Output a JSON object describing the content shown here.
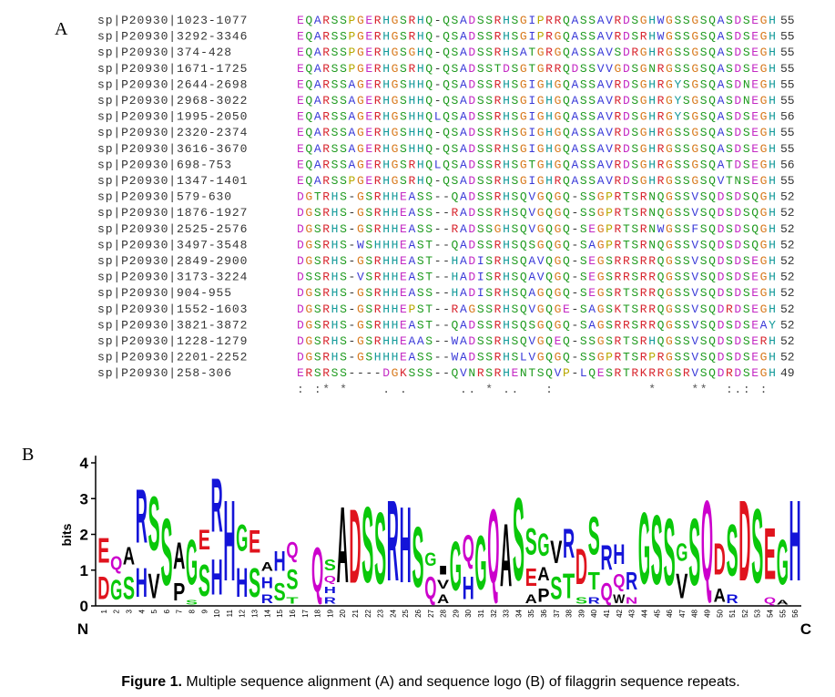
{
  "panel_a": {
    "label": "A",
    "rows": [
      {
        "name": "sp|P20930|1023-1077",
        "sequence": "EQARSSPGERHGSRHQ-QSADSSRHSGIPRRQASSAVRDSGHWGSSGSQASDSEGH",
        "length": 55
      },
      {
        "name": "sp|P20930|3292-3346",
        "sequence": "EQARSSPGERHGSRHQ-QSADSSRHSGIPRGQASSAVRDSRHWGSSGSQASDSEGH",
        "length": 55
      },
      {
        "name": "sp|P20930|374-428",
        "sequence": "EQARSSPGERHGSGHQ-QSADSSRHSATGRGQASSAVSDRGHRGSSGSQASDSEGH",
        "length": 55
      },
      {
        "name": "sp|P20930|1671-1725",
        "sequence": "EQARSSPGERHGSRHQ-QSADSSTDSGTGRRQDSSVVGDSGNRGSSGSQASDSEGH",
        "length": 55
      },
      {
        "name": "sp|P20930|2644-2698",
        "sequence": "EQARSSAGERHGSHHQ-QSADSSRHSGIGHGQASSAVRDSGHRGYSGSQASDNEGH",
        "length": 55
      },
      {
        "name": "sp|P20930|2968-3022",
        "sequence": "EQARSSAGERHGSHHQ-QSADSSRHSGIGHGQASSAVRDSGHRGYSGSQASDNEGH",
        "length": 55
      },
      {
        "name": "sp|P20930|1995-2050",
        "sequence": "EQARSSAGERHGSHHQLQSADSSRHSGIGHGQASSAVRDSGHRGYSGSQASDSEGH",
        "length": 56
      },
      {
        "name": "sp|P20930|2320-2374",
        "sequence": "EQARSSAGERHGSHHQ-QSADSSRHSGIGHGQASSAVRDSGHRGSSGSQASDSEGH",
        "length": 55
      },
      {
        "name": "sp|P20930|3616-3670",
        "sequence": "EQARSSAGERHGSHHQ-QSADSSRHSGIGHGQASSAVRDSGHRGSSGSQASDSEGH",
        "length": 55
      },
      {
        "name": "sp|P20930|698-753",
        "sequence": "EQARSSAGERHGSRHQLQSADSSRHSGTGHGQASSAVRDSGHRGSSGSQATDSEGH",
        "length": 56
      },
      {
        "name": "sp|P20930|1347-1401",
        "sequence": "EQARSSPGERHGSRHQ-QSADSSRHSGIGHRQASSAVRDSGHRGSSGSQVTNSEGH",
        "length": 55
      },
      {
        "name": "sp|P20930|579-630",
        "sequence": "DGTRHS-GSRHHEASS--QADSSRHSQVGQGQ-SSGPRTSRNQGSSVSQDSDSQGH",
        "length": 52
      },
      {
        "name": "sp|P20930|1876-1927",
        "sequence": "DGSRHS-GSRHHEASS--RADSSRHSQVGQGQ-SSGPRTSRNQGSSVSQDSDSQGH",
        "length": 52
      },
      {
        "name": "sp|P20930|2525-2576",
        "sequence": "DGSRHS-GSRHHEASS--RADSSGHSQVGQGQ-SEGPRTSRNWGSSFSQDSDSQGH",
        "length": 52
      },
      {
        "name": "sp|P20930|3497-3548",
        "sequence": "DGSRHS-WSHHHEAST--QADSSRHSQSGQGQ-SAGPRTSRNQGSSVSQDSDSQGH",
        "length": 52
      },
      {
        "name": "sp|P20930|2849-2900",
        "sequence": "DGSRHS-GSRHHEAST--HADISRHSQAVQGQ-SEGSRRSRRQGSSVSQDSDSEGH",
        "length": 52
      },
      {
        "name": "sp|P20930|3173-3224",
        "sequence": "DSSRHS-VSRHHEAST--HADISRHSQAVQGQ-SEGSRRSRRQGSSVSQDSDSEGH",
        "length": 52
      },
      {
        "name": "sp|P20930|904-955",
        "sequence": "DGSRHS-GSRHHEASS--HADISRHSQAGQGQ-SEGSRTSRRQGSSVSQDSDSEGH",
        "length": 52
      },
      {
        "name": "sp|P20930|1552-1603",
        "sequence": "DGSRHS-GSRHHEPST--RAGSSRHSQVGQGE-SAGSKTSRRQGSSVSQDRDSEGH",
        "length": 52
      },
      {
        "name": "sp|P20930|3821-3872",
        "sequence": "DGSRHS-GSRHHEAST--QADSSRHSQSGQGQ-SAGSRRSRRQGSSVSQDSDSEAY",
        "length": 52
      },
      {
        "name": "sp|P20930|1228-1279",
        "sequence": "DGSRHS-GSRHHEAAS--WADSSRHSQVGQEQ-SSGSRTSRHQGSSVSQDSDSERH",
        "length": 52
      },
      {
        "name": "sp|P20930|2201-2252",
        "sequence": "DGSRHS-GSHHHEASS--WADSSRHSLVGQGQ-SSGPRTSRPRGSSVSQDSDSEGH",
        "length": 52
      },
      {
        "name": "sp|P20930|258-306",
        "sequence": "ERSRSS----DGKSSS--QVNRSRHENTSQVP-LQESRTRKRRGSRVSQDRDSEGH",
        "length": 49
      }
    ],
    "conservation": ": :* *    . .      .. * ..   :           *    **  :.: :",
    "residue_colors": {
      "A": "#3a3ad8",
      "V": "#3a3ad8",
      "I": "#3a3ad8",
      "L": "#3a3ad8",
      "M": "#3a3ad8",
      "F": "#3a3ad8",
      "W": "#3a3ad8",
      "R": "#d8262f",
      "K": "#d8262f",
      "D": "#c42ac4",
      "E": "#c42ac4",
      "N": "#1e9a1e",
      "Q": "#1e9a1e",
      "S": "#1e9a1e",
      "T": "#1e9a1e",
      "G": "#d87a1e",
      "P": "#b8a800",
      "H": "#139a9a",
      "Y": "#139a9a",
      "C": "#d87a7a",
      "-": "#333333"
    }
  },
  "panel_b": {
    "label": "B",
    "y_label": "bits",
    "ylim": [
      0,
      4.2
    ],
    "yticks": [
      0,
      1,
      2,
      3,
      4
    ],
    "n_label": "N",
    "c_label": "C",
    "letter_colors": {
      "D": "#e0141e",
      "E": "#e0141e",
      "Q": "#cc00cc",
      "N": "#cc00cc",
      "H": "#1414d8",
      "R": "#1414d8",
      "K": "#1414d8",
      "S": "#0ac80a",
      "G": "#0ac80a",
      "T": "#0ac80a",
      "Y": "#0ac80a",
      "C": "#0ac80a",
      "A": "#000000",
      "V": "#000000",
      "I": "#000000",
      "L": "#000000",
      "P": "#000000",
      "W": "#000000",
      "F": "#000000",
      "M": "#000000"
    },
    "columns": [
      {
        "position": 1,
        "stack": [
          {
            "letter": "D",
            "bits": 1.0
          },
          {
            "letter": "E",
            "bits": 1.1
          }
        ]
      },
      {
        "position": 2,
        "stack": [
          {
            "letter": "G",
            "bits": 0.9
          },
          {
            "letter": "Q",
            "bits": 0.6
          }
        ]
      },
      {
        "position": 3,
        "stack": [
          {
            "letter": "S",
            "bits": 1.0
          },
          {
            "letter": "A",
            "bits": 0.8
          }
        ]
      },
      {
        "position": 4,
        "stack": [
          {
            "letter": "H",
            "bits": 1.3
          },
          {
            "letter": "R",
            "bits": 2.4
          }
        ]
      },
      {
        "position": 5,
        "stack": [
          {
            "letter": "V",
            "bits": 1.1
          },
          {
            "letter": "S",
            "bits": 2.4
          }
        ]
      },
      {
        "position": 6,
        "stack": [
          {
            "letter": "S",
            "bits": 3.0
          }
        ]
      },
      {
        "position": 7,
        "stack": [
          {
            "letter": "P",
            "bits": 0.8
          },
          {
            "letter": "A",
            "bits": 1.2
          }
        ]
      },
      {
        "position": 8,
        "stack": [
          {
            "letter": "S",
            "bits": 0.2
          },
          {
            "letter": "G",
            "bits": 2.0
          }
        ]
      },
      {
        "position": 9,
        "stack": [
          {
            "letter": "S",
            "bits": 1.4
          },
          {
            "letter": "E",
            "bits": 0.9
          }
        ]
      },
      {
        "position": 10,
        "stack": [
          {
            "letter": "H",
            "bits": 1.6
          },
          {
            "letter": "R",
            "bits": 2.4
          }
        ]
      },
      {
        "position": 11,
        "stack": [
          {
            "letter": "H",
            "bits": 3.6
          }
        ]
      },
      {
        "position": 12,
        "stack": [
          {
            "letter": "H",
            "bits": 1.3
          },
          {
            "letter": "G",
            "bits": 1.2
          }
        ]
      },
      {
        "position": 13,
        "stack": [
          {
            "letter": "S",
            "bits": 1.3
          },
          {
            "letter": "E",
            "bits": 1.0
          }
        ]
      },
      {
        "position": 14,
        "stack": [
          {
            "letter": "R",
            "bits": 0.4
          },
          {
            "letter": "H",
            "bits": 0.5
          },
          {
            "letter": "A",
            "bits": 0.4
          }
        ]
      },
      {
        "position": 15,
        "stack": [
          {
            "letter": "S",
            "bits": 0.8
          },
          {
            "letter": "H",
            "bits": 0.9
          }
        ]
      },
      {
        "position": 16,
        "stack": [
          {
            "letter": "T",
            "bits": 0.3
          },
          {
            "letter": "S",
            "bits": 0.9
          },
          {
            "letter": "Q",
            "bits": 0.7
          }
        ]
      },
      {
        "position": 17,
        "stack": []
      },
      {
        "position": 18,
        "stack": [
          {
            "letter": "Q",
            "bits": 2.0
          }
        ]
      },
      {
        "position": 19,
        "stack": [
          {
            "letter": "R",
            "bits": 0.3
          },
          {
            "letter": "H",
            "bits": 0.3
          },
          {
            "letter": "Q",
            "bits": 0.3
          },
          {
            "letter": "S",
            "bits": 0.5
          }
        ]
      },
      {
        "position": 20,
        "stack": [
          {
            "letter": "A",
            "bits": 3.4
          }
        ]
      },
      {
        "position": 21,
        "stack": [
          {
            "letter": "D",
            "bits": 3.3
          }
        ]
      },
      {
        "position": 22,
        "stack": [
          {
            "letter": "S",
            "bits": 3.4
          }
        ]
      },
      {
        "position": 23,
        "stack": [
          {
            "letter": "S",
            "bits": 3.2
          }
        ]
      },
      {
        "position": 24,
        "stack": [
          {
            "letter": "R",
            "bits": 3.6
          }
        ]
      },
      {
        "position": 25,
        "stack": [
          {
            "letter": "H",
            "bits": 3.4
          }
        ]
      },
      {
        "position": 26,
        "stack": [
          {
            "letter": "S",
            "bits": 2.7
          }
        ]
      },
      {
        "position": 27,
        "stack": [
          {
            "letter": "Q",
            "bits": 1.0
          },
          {
            "letter": "G",
            "bits": 0.6
          }
        ]
      },
      {
        "position": 28,
        "stack": [
          {
            "letter": "A",
            "bits": 0.4
          },
          {
            "letter": "V",
            "bits": 0.4
          },
          {
            "letter": "I",
            "bits": 0.4
          }
        ]
      },
      {
        "position": 29,
        "stack": [
          {
            "letter": "G",
            "bits": 2.2
          }
        ]
      },
      {
        "position": 30,
        "stack": [
          {
            "letter": "H",
            "bits": 1.0
          },
          {
            "letter": "Q",
            "bits": 1.2
          }
        ]
      },
      {
        "position": 31,
        "stack": [
          {
            "letter": "G",
            "bits": 2.4
          }
        ]
      },
      {
        "position": 32,
        "stack": [
          {
            "letter": "Q",
            "bits": 3.3
          }
        ]
      },
      {
        "position": 33,
        "stack": [
          {
            "letter": "A",
            "bits": 2.8
          }
        ]
      },
      {
        "position": 34,
        "stack": [
          {
            "letter": "S",
            "bits": 3.7
          }
        ]
      },
      {
        "position": 35,
        "stack": [
          {
            "letter": "A",
            "bits": 0.4
          },
          {
            "letter": "E",
            "bits": 0.8
          },
          {
            "letter": "S",
            "bits": 1.2
          }
        ]
      },
      {
        "position": 36,
        "stack": [
          {
            "letter": "P",
            "bits": 0.6
          },
          {
            "letter": "A",
            "bits": 0.6
          },
          {
            "letter": "G",
            "bits": 1.0
          }
        ]
      },
      {
        "position": 37,
        "stack": [
          {
            "letter": "S",
            "bits": 1.0
          },
          {
            "letter": "V",
            "bits": 1.0
          }
        ]
      },
      {
        "position": 38,
        "stack": [
          {
            "letter": "T",
            "bits": 1.1
          },
          {
            "letter": "R",
            "bits": 1.3
          }
        ]
      },
      {
        "position": 39,
        "stack": [
          {
            "letter": "S",
            "bits": 0.3
          },
          {
            "letter": "D",
            "bits": 1.6
          }
        ]
      },
      {
        "position": 40,
        "stack": [
          {
            "letter": "R",
            "bits": 0.3
          },
          {
            "letter": "T",
            "bits": 0.8
          },
          {
            "letter": "S",
            "bits": 1.7
          }
        ]
      },
      {
        "position": 41,
        "stack": [
          {
            "letter": "Q",
            "bits": 0.8
          },
          {
            "letter": "R",
            "bits": 1.1
          }
        ]
      },
      {
        "position": 42,
        "stack": [
          {
            "letter": "W",
            "bits": 0.4
          },
          {
            "letter": "Q",
            "bits": 0.6
          },
          {
            "letter": "H",
            "bits": 0.9
          }
        ]
      },
      {
        "position": 43,
        "stack": [
          {
            "letter": "N",
            "bits": 0.3
          },
          {
            "letter": "R",
            "bits": 0.8
          }
        ]
      },
      {
        "position": 44,
        "stack": [
          {
            "letter": "G",
            "bits": 3.2
          }
        ]
      },
      {
        "position": 45,
        "stack": [
          {
            "letter": "S",
            "bits": 3.1
          }
        ]
      },
      {
        "position": 46,
        "stack": [
          {
            "letter": "S",
            "bits": 3.0
          }
        ]
      },
      {
        "position": 47,
        "stack": [
          {
            "letter": "V",
            "bits": 1.1
          },
          {
            "letter": "G",
            "bits": 0.8
          }
        ]
      },
      {
        "position": 48,
        "stack": [
          {
            "letter": "S",
            "bits": 3.0
          }
        ]
      },
      {
        "position": 49,
        "stack": [
          {
            "letter": "Q",
            "bits": 3.6
          }
        ]
      },
      {
        "position": 50,
        "stack": [
          {
            "letter": "A",
            "bits": 0.6
          },
          {
            "letter": "D",
            "bits": 1.4
          }
        ]
      },
      {
        "position": 51,
        "stack": [
          {
            "letter": "R",
            "bits": 0.4
          },
          {
            "letter": "S",
            "bits": 2.3
          }
        ]
      },
      {
        "position": 52,
        "stack": [
          {
            "letter": "D",
            "bits": 3.6
          }
        ]
      },
      {
        "position": 53,
        "stack": [
          {
            "letter": "S",
            "bits": 3.3
          }
        ]
      },
      {
        "position": 54,
        "stack": [
          {
            "letter": "Q",
            "bits": 0.3
          },
          {
            "letter": "E",
            "bits": 2.3
          }
        ]
      },
      {
        "position": 55,
        "stack": [
          {
            "letter": "A",
            "bits": 0.2
          },
          {
            "letter": "G",
            "bits": 2.0
          }
        ]
      },
      {
        "position": 56,
        "stack": [
          {
            "letter": "H",
            "bits": 3.6
          }
        ]
      }
    ]
  },
  "caption": {
    "label": "Figure 1.",
    "text": "Multiple sequence alignment (A) and sequence logo (B) of filaggrin sequence repeats."
  }
}
